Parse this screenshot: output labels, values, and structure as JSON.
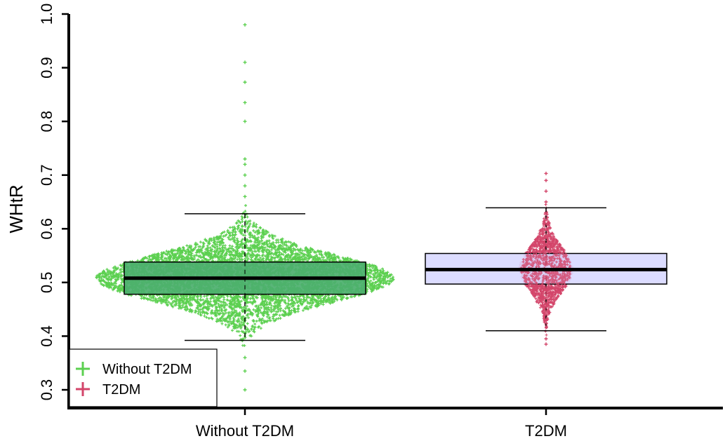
{
  "chart_data": {
    "type": "box",
    "ylabel": "WHtR",
    "ylim": [
      0.3,
      1.0
    ],
    "yticks": [
      "0.3",
      "0.4",
      "0.5",
      "0.6",
      "0.7",
      "0.8",
      "0.9",
      "1.0"
    ],
    "categories": [
      "Without T2DM",
      "T2DM"
    ],
    "boxes": [
      {
        "name": "Without T2DM",
        "whisker_low": 0.392,
        "q1": 0.478,
        "median": 0.508,
        "q3": 0.538,
        "whisker_high": 0.628,
        "box_color": "#4caf6e",
        "point_color": "#5cd050",
        "outliers": [
          0.66,
          0.68,
          0.7,
          0.72,
          0.73,
          0.8,
          0.835,
          0.873,
          0.91,
          0.98,
          0.36,
          0.335,
          0.3
        ]
      },
      {
        "name": "T2DM",
        "whisker_low": 0.41,
        "q1": 0.497,
        "median": 0.524,
        "q3": 0.554,
        "whisker_high": 0.639,
        "box_color": "#d8d8ff",
        "point_color": "#d3456a",
        "outliers": [
          0.65,
          0.67,
          0.69,
          0.703,
          0.395,
          0.385
        ]
      }
    ],
    "legend": {
      "position": "bottom-left",
      "entries": [
        {
          "label": "Without T2DM",
          "color": "#5cd050"
        },
        {
          "label": "T2DM",
          "color": "#d3456a"
        }
      ]
    },
    "grid": false
  }
}
